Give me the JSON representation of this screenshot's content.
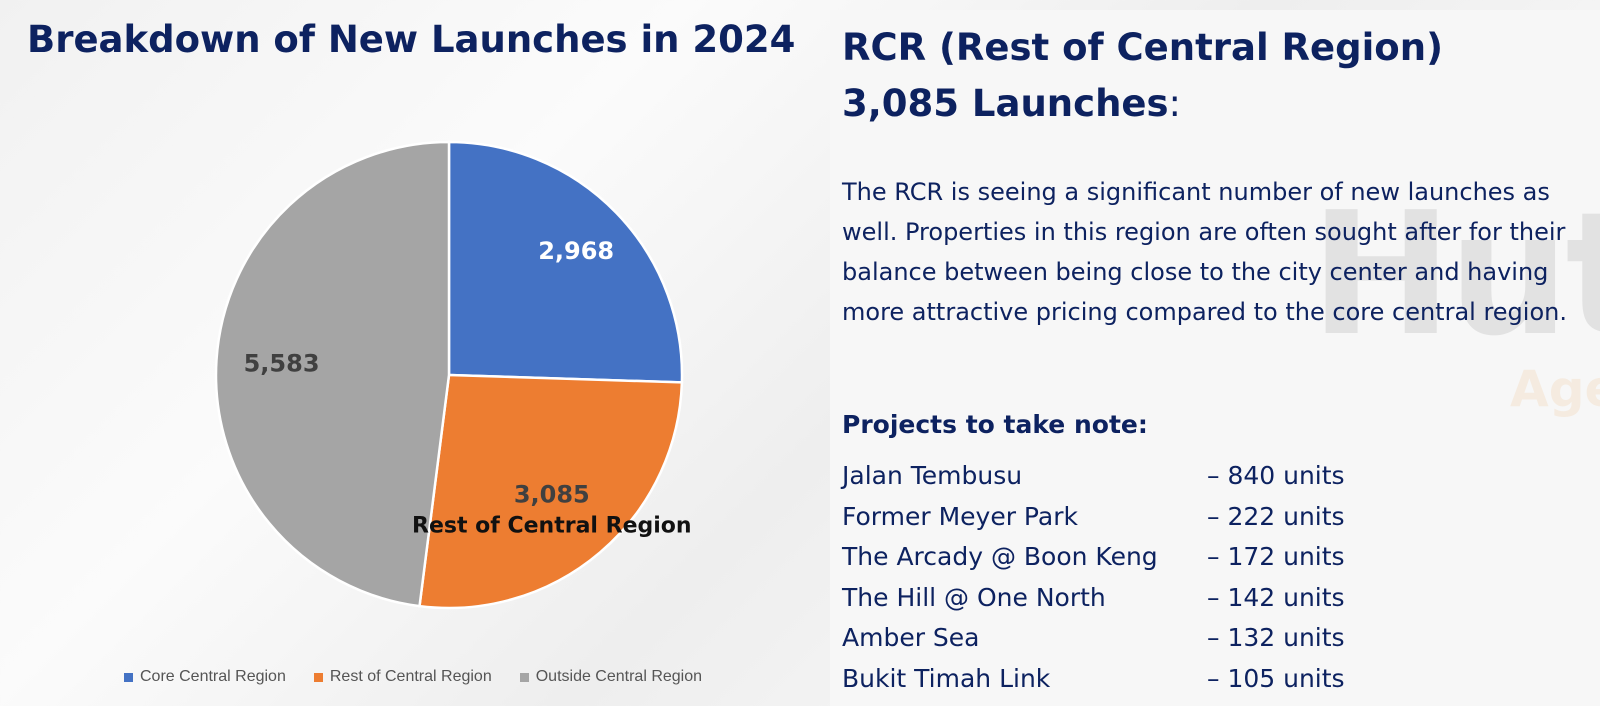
{
  "chart_data": {
    "type": "pie",
    "title": "Breakdown of New Launches in 2024",
    "categories": [
      "Core Central Region",
      "Rest of Central Region",
      "Outside Central Region"
    ],
    "values": [
      2968,
      3085,
      5583
    ],
    "labels": [
      "2,968",
      "3,085",
      "5,583"
    ],
    "colors": [
      "#4472C4",
      "#ED7D31",
      "#A5A5A5"
    ],
    "label_colors": [
      "#ffffff",
      "#404040",
      "#404040"
    ],
    "highlight_label": "Rest of Central Region",
    "legend_position": "bottom"
  },
  "watermark": {
    "name": "Huttons",
    "tagline": "Agency of Choice"
  },
  "detail": {
    "title": "RCR (Rest of Central Region)",
    "count": "3,085 Launches",
    "colon": ":",
    "paragraph": "The RCR is seeing a significant number of new launches as well. Properties in this region are often sought after for their balance between being close to the city center and having more attractive pricing compared to the core central region.",
    "projects_heading": "Projects to take note:",
    "projects": [
      {
        "name": "Jalan Tembusu",
        "units": "– 840 units"
      },
      {
        "name": "Former Meyer Park",
        "units": "– 222 units"
      },
      {
        "name": "The Arcady @ Boon Keng",
        "units": "– 172 units"
      },
      {
        "name": "The Hill @ One North",
        "units": "– 142 units"
      },
      {
        "name": "Amber Sea",
        "units": "– 132 units"
      },
      {
        "name": "Bukit Timah Link",
        "units": "– 105 units"
      }
    ]
  }
}
